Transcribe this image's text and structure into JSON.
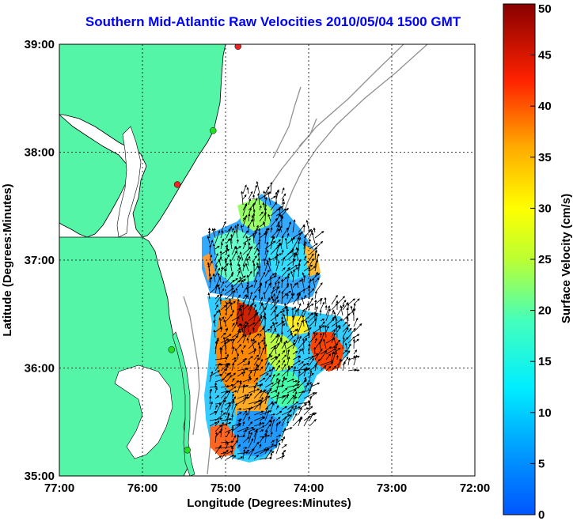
{
  "title": "Southern Mid-Atlantic Raw Velocities 2010/05/04 1500 GMT",
  "axes": {
    "xlabel": "Longitude (Degrees:Minutes)",
    "ylabel": "Latitude (Degrees:Minutes)",
    "xticks": [
      "77:00",
      "76:00",
      "75:00",
      "74:00",
      "73:00",
      "72:00"
    ],
    "yticks": [
      "39:00",
      "38:00",
      "37:00",
      "36:00",
      "35:00"
    ],
    "xlim": [
      -77,
      -72
    ],
    "ylim": [
      35,
      39
    ],
    "grid": true
  },
  "colorbar": {
    "label": "Surface Velocity (cm/s)",
    "ticks": [
      "50",
      "45",
      "40",
      "35",
      "30",
      "25",
      "20",
      "15",
      "10",
      "5",
      "0"
    ],
    "range": [
      0,
      50
    ],
    "colormap": "jet"
  },
  "colors": {
    "land": "#55f5a8",
    "coast": "#000000",
    "bathymetry": "#909090",
    "title": "#0000ff",
    "station_green": "#22dd22",
    "station_red": "#ee2222"
  },
  "stations": [
    {
      "name": "green-station",
      "lon": -75.15,
      "lat": 38.2,
      "color": "green"
    },
    {
      "name": "red-station",
      "lon": -75.58,
      "lat": 37.7,
      "color": "red"
    },
    {
      "name": "green-station",
      "lon": -75.65,
      "lat": 36.17,
      "color": "green"
    },
    {
      "name": "green-station",
      "lon": -75.46,
      "lat": 35.24,
      "color": "green"
    },
    {
      "name": "red-station",
      "lon": -74.85,
      "lat": 38.98,
      "color": "red"
    }
  ]
}
